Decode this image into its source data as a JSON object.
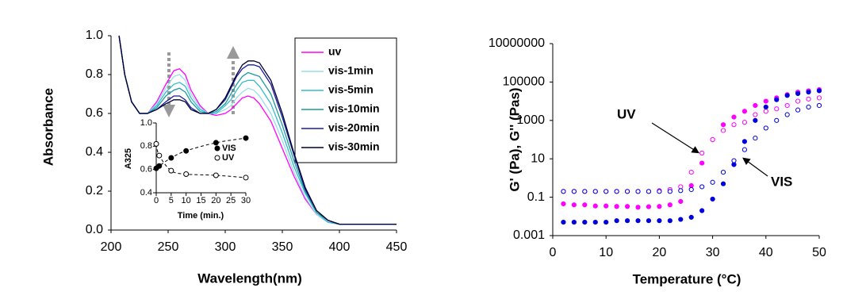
{
  "chart_data": [
    {
      "type": "line",
      "x_label": "Wavelength(nm)",
      "y_label": "Absorbance",
      "xlim": [
        200,
        450
      ],
      "xticks": [
        200,
        250,
        300,
        350,
        400,
        450
      ],
      "ylim": [
        0,
        1
      ],
      "yticks": [
        {
          "value": 0,
          "label": "0.0"
        },
        {
          "value": 0.2,
          "label": "0.2"
        },
        {
          "value": 0.4,
          "label": "0.4"
        },
        {
          "value": 0.6,
          "label": "0.6"
        },
        {
          "value": 0.8,
          "label": "0.8"
        },
        {
          "value": 1,
          "label": "1.0"
        }
      ],
      "legend": "upper right",
      "x": [
        207,
        212,
        218,
        225,
        232,
        240,
        248,
        255,
        260,
        265,
        270,
        278,
        285,
        292,
        300,
        305,
        310,
        315,
        320,
        325,
        330,
        340,
        350,
        360,
        370,
        380,
        390,
        400,
        420,
        450
      ],
      "series": [
        {
          "name": "uv",
          "color": "#ff00ff",
          "values": [
            1.0,
            0.8,
            0.66,
            0.6,
            0.6,
            0.66,
            0.75,
            0.82,
            0.83,
            0.8,
            0.72,
            0.64,
            0.6,
            0.59,
            0.6,
            0.62,
            0.65,
            0.68,
            0.69,
            0.68,
            0.65,
            0.56,
            0.42,
            0.28,
            0.16,
            0.08,
            0.04,
            0.03,
            0.03,
            0.03
          ]
        },
        {
          "name": "vis-1min",
          "color": "#99dde8",
          "values": [
            1.0,
            0.8,
            0.66,
            0.6,
            0.6,
            0.65,
            0.73,
            0.79,
            0.8,
            0.77,
            0.7,
            0.63,
            0.6,
            0.6,
            0.62,
            0.64,
            0.68,
            0.71,
            0.73,
            0.72,
            0.69,
            0.6,
            0.46,
            0.3,
            0.17,
            0.08,
            0.04,
            0.03,
            0.03,
            0.03
          ]
        },
        {
          "name": "vis-5min",
          "color": "#33bccc",
          "values": [
            1.0,
            0.8,
            0.66,
            0.6,
            0.6,
            0.64,
            0.71,
            0.75,
            0.76,
            0.74,
            0.68,
            0.62,
            0.6,
            0.6,
            0.64,
            0.67,
            0.72,
            0.76,
            0.77,
            0.77,
            0.74,
            0.65,
            0.5,
            0.33,
            0.19,
            0.09,
            0.04,
            0.03,
            0.03,
            0.03
          ]
        },
        {
          "name": "vis-10min",
          "color": "#1f9a9a",
          "values": [
            1.0,
            0.8,
            0.66,
            0.6,
            0.6,
            0.63,
            0.69,
            0.72,
            0.73,
            0.71,
            0.66,
            0.61,
            0.6,
            0.61,
            0.65,
            0.7,
            0.75,
            0.79,
            0.81,
            0.8,
            0.79,
            0.7,
            0.54,
            0.36,
            0.2,
            0.09,
            0.05,
            0.03,
            0.03,
            0.03
          ]
        },
        {
          "name": "vis-20min",
          "color": "#1a1aa0",
          "values": [
            1.0,
            0.8,
            0.66,
            0.6,
            0.6,
            0.62,
            0.66,
            0.69,
            0.69,
            0.67,
            0.63,
            0.6,
            0.6,
            0.62,
            0.67,
            0.73,
            0.79,
            0.83,
            0.85,
            0.85,
            0.84,
            0.75,
            0.58,
            0.39,
            0.21,
            0.1,
            0.05,
            0.03,
            0.03,
            0.03
          ]
        },
        {
          "name": "vis-30min",
          "color": "#000033",
          "values": [
            1.0,
            0.8,
            0.66,
            0.6,
            0.6,
            0.62,
            0.65,
            0.67,
            0.67,
            0.66,
            0.62,
            0.6,
            0.6,
            0.62,
            0.68,
            0.74,
            0.8,
            0.85,
            0.87,
            0.87,
            0.86,
            0.77,
            0.6,
            0.4,
            0.22,
            0.1,
            0.05,
            0.03,
            0.03,
            0.03
          ]
        }
      ]
    },
    {
      "type": "scatter",
      "x_label": "Time (min.)",
      "y_label": "A325",
      "xlim": [
        0,
        30
      ],
      "xticks": [
        0,
        5,
        10,
        15,
        20,
        25,
        30
      ],
      "ylim": [
        0.4,
        1
      ],
      "yticks": [
        0.4,
        0.6,
        0.8,
        {
          "value": 1,
          "label": "1.0"
        }
      ],
      "trend_line": "dashed",
      "legend": "right",
      "x": [
        0,
        1,
        5,
        10,
        20,
        30
      ],
      "series": [
        {
          "name": "VIS",
          "color": "#000000",
          "marker": "filled",
          "values": [
            0.61,
            0.63,
            0.7,
            0.76,
            0.83,
            0.87
          ]
        },
        {
          "name": "UV",
          "color": "#000000",
          "marker": "open",
          "values": [
            0.82,
            0.72,
            0.59,
            0.56,
            0.55,
            0.53
          ]
        }
      ]
    },
    {
      "type": "scatter",
      "x_label": "Temperature (°C)",
      "y_label": "G' (Pa), G'' (Pas)",
      "log_y": true,
      "xlim": [
        0,
        50
      ],
      "xticks": [
        0,
        10,
        20,
        30,
        40,
        50
      ],
      "ylim": [
        0.001,
        10000000
      ],
      "yticks": [
        0.001,
        0.1,
        10,
        1000,
        100000,
        10000000
      ],
      "annotations": [
        "UV",
        "VIS"
      ],
      "x": [
        2,
        4,
        6,
        8,
        10,
        12,
        14,
        16,
        18,
        20,
        22,
        24,
        26,
        28,
        30,
        32,
        34,
        36,
        38,
        40,
        42,
        44,
        46,
        48,
        50
      ],
      "series": [
        {
          "color": "#ff00ff",
          "marker": "filled",
          "values": [
            0.045,
            0.04,
            0.04,
            0.035,
            0.035,
            0.033,
            0.033,
            0.03,
            0.032,
            0.033,
            0.04,
            0.06,
            0.4,
            6,
            100,
            600,
            1500,
            3000,
            6000,
            10000,
            15000,
            22000,
            30000,
            35000,
            40000
          ]
        },
        {
          "color": "#ff00ff",
          "marker": "open",
          "values": [
            0.2,
            0.2,
            0.2,
            0.2,
            0.2,
            0.2,
            0.2,
            0.2,
            0.2,
            0.22,
            0.25,
            0.35,
            2,
            20,
            100,
            300,
            600,
            800,
            2000,
            3000,
            4000,
            6000,
            10000,
            13000,
            15000
          ]
        },
        {
          "color": "#0000dd",
          "marker": "filled",
          "values": [
            0.005,
            0.005,
            0.005,
            0.005,
            0.005,
            0.006,
            0.006,
            0.006,
            0.006,
            0.006,
            0.006,
            0.007,
            0.009,
            0.02,
            0.08,
            0.5,
            5,
            80,
            1000,
            5000,
            12000,
            20000,
            25000,
            30000,
            35000
          ]
        },
        {
          "color": "#0000dd",
          "marker": "open",
          "values": [
            0.2,
            0.2,
            0.2,
            0.2,
            0.2,
            0.2,
            0.2,
            0.2,
            0.2,
            0.2,
            0.2,
            0.22,
            0.25,
            0.35,
            0.6,
            2,
            8,
            30,
            120,
            400,
            1000,
            2000,
            3500,
            5000,
            6000
          ]
        }
      ]
    }
  ]
}
